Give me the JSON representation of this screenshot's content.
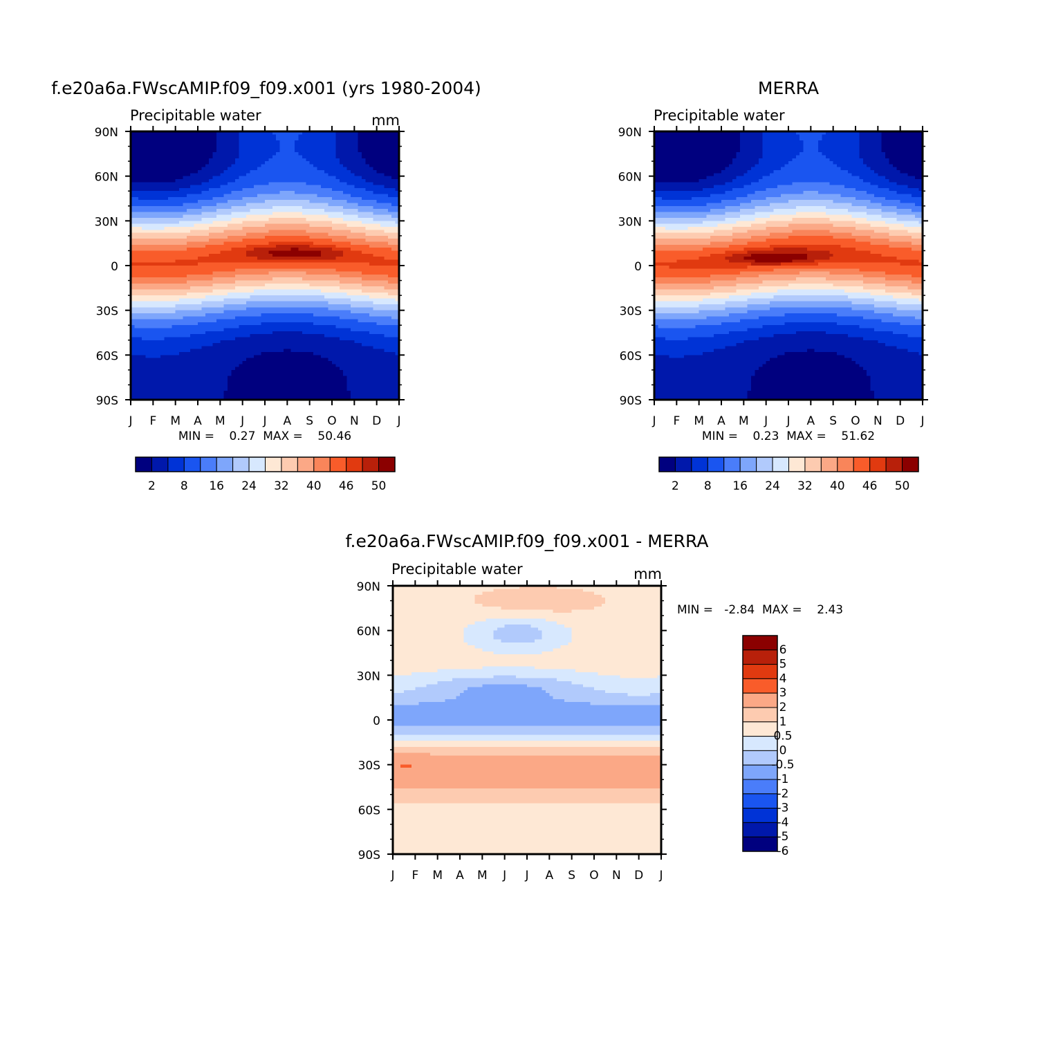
{
  "figure": {
    "model_title": "f.e20a6a.FWscAMIP.f09_f09.x001 (yrs 1980-2004)",
    "obs_title": "MERRA",
    "diff_title": "f.e20a6a.FWscAMIP.f09_f09.x001 - MERRA"
  },
  "chart_data": [
    {
      "id": "model",
      "type": "heatmap",
      "title": "f.e20a6a.FWscAMIP.f09_f09.x001 (yrs 1980-2004)",
      "variable": "Precipitable water",
      "units": "mm",
      "x_ticks": [
        "J",
        "F",
        "M",
        "A",
        "M",
        "J",
        "J",
        "A",
        "S",
        "O",
        "N",
        "D",
        "J"
      ],
      "y_ticks": [
        "90N",
        "60N",
        "30N",
        "0",
        "30S",
        "60S",
        "90S"
      ],
      "ylim": [
        -90,
        90
      ],
      "stats": "MIN =    0.27  MAX =    50.46",
      "min": 0.27,
      "max": 50.46,
      "colorbar_labels": [
        "2",
        "8",
        "16",
        "24",
        "32",
        "40",
        "46",
        "50"
      ],
      "color_levels": [
        "#00007f",
        "#0018ab",
        "#0033d6",
        "#1a55f0",
        "#4a7dfa",
        "#7ea6fb",
        "#b1cafc",
        "#d7e8fe",
        "#fee8d5",
        "#fdcbb0",
        "#fba886",
        "#f9855a",
        "#f95c2a",
        "#e13a10",
        "#b8200a",
        "#8b0000"
      ],
      "peak_month": 7.4,
      "peak_lat": 8,
      "peak_value": 50.46
    },
    {
      "id": "obs",
      "type": "heatmap",
      "title": "MERRA",
      "variable": "Precipitable water",
      "units": "",
      "x_ticks": [
        "J",
        "F",
        "M",
        "A",
        "M",
        "J",
        "J",
        "A",
        "S",
        "O",
        "N",
        "D",
        "J"
      ],
      "y_ticks": [
        "90N",
        "60N",
        "30N",
        "0",
        "30S",
        "60S",
        "90S"
      ],
      "ylim": [
        -90,
        90
      ],
      "stats": "MIN =    0.23  MAX =    51.62",
      "min": 0.23,
      "max": 51.62,
      "colorbar_labels": [
        "2",
        "8",
        "16",
        "24",
        "32",
        "40",
        "46",
        "50"
      ],
      "color_levels": [
        "#00007f",
        "#0018ab",
        "#0033d6",
        "#1a55f0",
        "#4a7dfa",
        "#7ea6fb",
        "#b1cafc",
        "#d7e8fe",
        "#fee8d5",
        "#fdcbb0",
        "#fba886",
        "#f9855a",
        "#f95c2a",
        "#e13a10",
        "#b8200a",
        "#8b0000"
      ],
      "peak_month": 5.5,
      "peak_lat": 5,
      "peak_value": 51.62
    },
    {
      "id": "diff",
      "type": "heatmap",
      "title": "f.e20a6a.FWscAMIP.f09_f09.x001 - MERRA",
      "variable": "Precipitable water",
      "units": "mm",
      "x_ticks": [
        "J",
        "F",
        "M",
        "A",
        "M",
        "J",
        "J",
        "A",
        "S",
        "O",
        "N",
        "D",
        "J"
      ],
      "y_ticks": [
        "90N",
        "60N",
        "30N",
        "0",
        "30S",
        "60S",
        "90S"
      ],
      "ylim": [
        -90,
        90
      ],
      "stats": "MIN =   -2.84  MAX =    2.43",
      "min": -2.84,
      "max": 2.43,
      "colorbar_labels": [
        "6",
        "5",
        "4",
        "3",
        "2",
        "1",
        "0.5",
        "0",
        "-0.5",
        "-1",
        "-2",
        "-3",
        "-4",
        "-5",
        "-6"
      ],
      "color_levels": [
        "#8b0000",
        "#b8200a",
        "#e13a10",
        "#f95c2a",
        "#fba886",
        "#fdcbb0",
        "#fee8d5",
        "#d7e8fe",
        "#b1cafc",
        "#7ea6fb",
        "#4a7dfa",
        "#1a55f0",
        "#0033d6",
        "#0018ab",
        "#00007f"
      ]
    }
  ]
}
